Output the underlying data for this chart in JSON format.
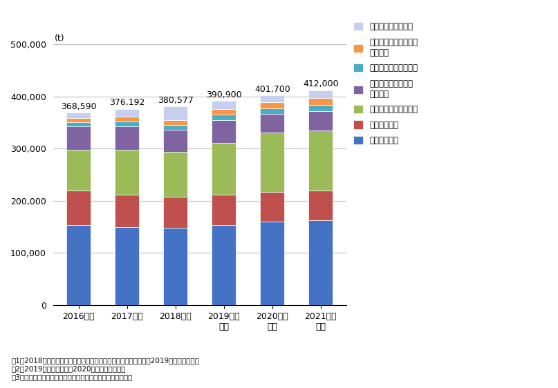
{
  "categories": [
    "2016年度",
    "2017年度",
    "2018年度",
    "2019年度\n見込",
    "2020年度\n予測",
    "2021年度\n予測"
  ],
  "totals": [
    368590,
    376192,
    380577,
    390900,
    401700,
    412000
  ],
  "series": [
    {
      "label": "グラスウール",
      "color": "#4472C4",
      "values": [
        153000,
        149000,
        148000,
        153000,
        160000,
        163000
      ]
    },
    {
      "label": "ロックウール",
      "color": "#C0504D",
      "values": [
        67000,
        63000,
        59000,
        59000,
        57000,
        57000
      ]
    },
    {
      "label": "硬質ウレタンフォーム",
      "color": "#9BBB59",
      "values": [
        78000,
        86000,
        86000,
        99000,
        113000,
        114000
      ]
    },
    {
      "label": "押出法ポリスチレン\nフォーム",
      "color": "#8064A2",
      "values": [
        44000,
        44000,
        43000,
        44000,
        36000,
        38000
      ]
    },
    {
      "label": "セルローズファイバー",
      "color": "#4BACC6",
      "values": [
        9000,
        9500,
        9500,
        10000,
        11000,
        11500
      ]
    },
    {
      "label": "ビーズ法ポリスチレン\nフォーム",
      "color": "#F79646",
      "values": [
        8000,
        9000,
        9500,
        10000,
        12000,
        13000
      ]
    },
    {
      "label": "フェノールフォーム",
      "color": "#C6CFEF",
      "values": [
        9590,
        15692,
        25577,
        15900,
        12700,
        15500
      ]
    }
  ],
  "ylabel": "(t)",
  "ylim": [
    0,
    550000
  ],
  "yticks": [
    0,
    100000,
    200000,
    300000,
    400000,
    500000
  ],
  "ytick_labels": [
    "0",
    "100,000",
    "200,000",
    "300,000",
    "400,000",
    "500,000"
  ],
  "notes": [
    "注1．2018年度までは一部公開資料をもとに矢野経済研究所作成、2019年度以降は推計",
    "注2．2019年度は見込値、2020年度以降は予測値",
    "注3．いずれの断熱材も住宅に使用されるものを対象とした。"
  ],
  "bg_color": "#FFFFFF",
  "grid_color": "#C0C0C0",
  "legend_labels": [
    "フェノールフォーム",
    "ビーズ法ポリスチレン\nフォーム",
    "セルローズファイバー",
    "押出法ポリスチレン\nフォーム",
    "硬質ウレタンフォーム",
    "ロックウール",
    "グラスウール"
  ]
}
